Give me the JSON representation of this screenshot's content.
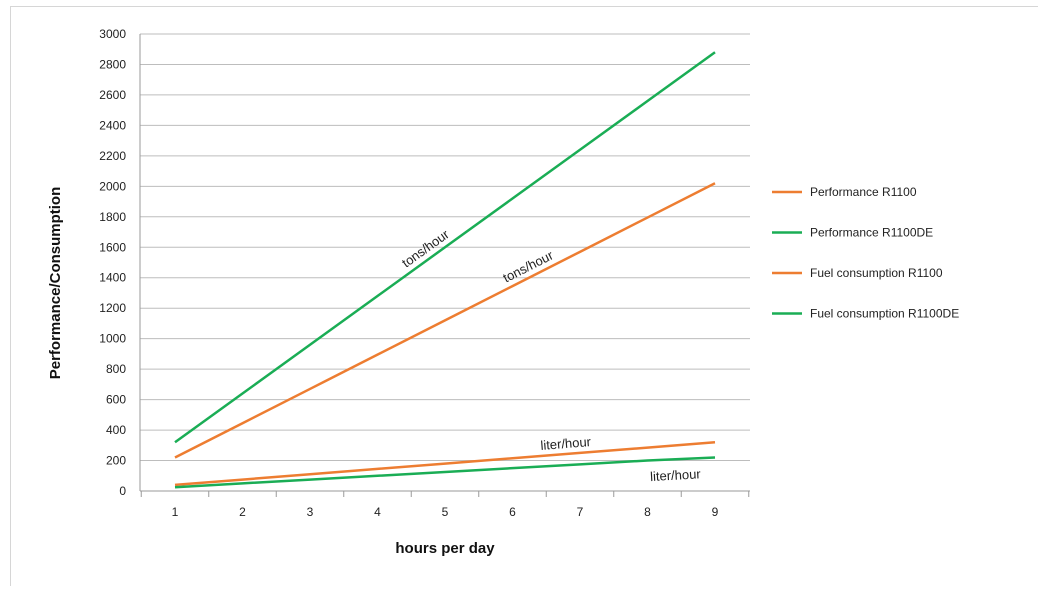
{
  "chart_data": {
    "type": "line",
    "title": "",
    "xlabel": "hours per day",
    "ylabel": "Performance/Consumption",
    "x": [
      1,
      2,
      3,
      4,
      5,
      6,
      7,
      8,
      9
    ],
    "xlim": [
      1,
      9
    ],
    "ylim": [
      0,
      3000
    ],
    "yticks": [
      0,
      200,
      400,
      600,
      800,
      1000,
      1200,
      1400,
      1600,
      1800,
      2000,
      2200,
      2400,
      2600,
      2800,
      3000
    ],
    "grid": true,
    "legend_position": "right",
    "series": [
      {
        "name": "Performance R1100",
        "color": "#ed7d31",
        "values": [
          220,
          445,
          670,
          895,
          1120,
          1345,
          1570,
          1795,
          2020
        ]
      },
      {
        "name": "Performance R1100DE",
        "color": "#1aad55",
        "values": [
          320,
          640,
          960,
          1280,
          1600,
          1920,
          2240,
          2560,
          2880
        ]
      },
      {
        "name": "Fuel consumption R1100",
        "color": "#ed7d31",
        "values": [
          40,
          75,
          110,
          145,
          180,
          215,
          250,
          285,
          320
        ]
      },
      {
        "name": "Fuel consumption R1100DE",
        "color": "#1aad55",
        "values": [
          25,
          50,
          75,
          100,
          125,
          150,
          175,
          200,
          220
        ]
      }
    ],
    "annotations": [
      {
        "text": "tons/hour",
        "series": 1,
        "x": 4.8
      },
      {
        "text": "tons/hour",
        "series": 0,
        "x": 6.3
      },
      {
        "text": "liter/hour",
        "series": 2,
        "x": 6.8
      },
      {
        "text": "liter/hour",
        "series": 3,
        "x": 8.4
      }
    ]
  }
}
